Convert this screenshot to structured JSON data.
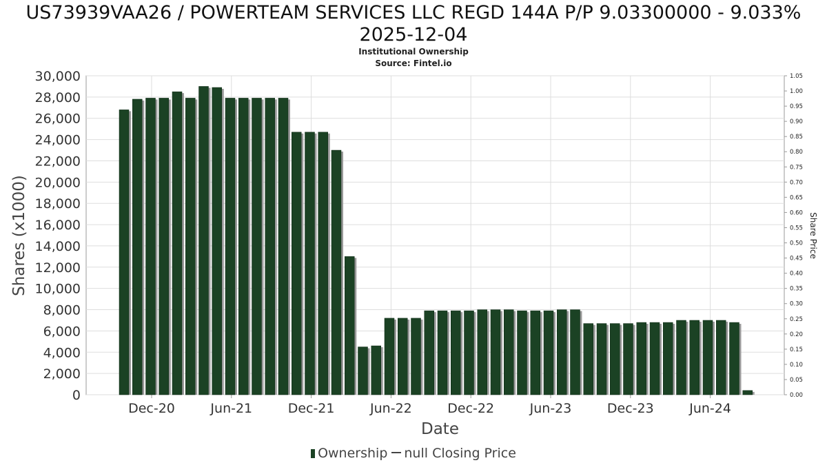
{
  "chart_data": {
    "type": "bar",
    "title": "US73939VAA26 / POWERTEAM SERVICES LLC REGD 144A P/P 9.03300000 - 9.033%",
    "title_line2": "2025-12-04",
    "subtitle": "Institutional Ownership",
    "source": "Source: Fintel.io",
    "xlabel": "Date",
    "ylabel": "Shares (x1000)",
    "y2label": "Share Price",
    "ylim": [
      0,
      30000
    ],
    "y2lim": [
      0,
      1.05
    ],
    "yticks": [
      "0",
      "2,000",
      "4,000",
      "6,000",
      "8,000",
      "10,000",
      "12,000",
      "14,000",
      "16,000",
      "18,000",
      "20,000",
      "22,000",
      "24,000",
      "26,000",
      "28,000",
      "30,000"
    ],
    "y2ticks": [
      "0.00",
      "0.05",
      "0.10",
      "0.15",
      "0.20",
      "0.25",
      "0.30",
      "0.35",
      "0.40",
      "0.45",
      "0.50",
      "0.55",
      "0.60",
      "0.65",
      "0.70",
      "0.75",
      "0.80",
      "0.85",
      "0.90",
      "0.95",
      "1.00",
      "1.05"
    ],
    "xticks": [
      "Dec-20",
      "Jun-21",
      "Dec-21",
      "Jun-22",
      "Dec-22",
      "Jun-23",
      "Dec-23",
      "Jun-24"
    ],
    "grid": true,
    "legend_position": "bottom",
    "series": [
      {
        "name": "Ownership",
        "color": "#1b4224",
        "values": [
          26800,
          27800,
          27900,
          27900,
          28500,
          27900,
          29000,
          28900,
          27900,
          27900,
          27900,
          27900,
          27900,
          24700,
          24700,
          24700,
          23000,
          13000,
          4500,
          4600,
          7200,
          7200,
          7200,
          7900,
          7900,
          7900,
          7900,
          8000,
          8000,
          8000,
          7900,
          7900,
          7900,
          8000,
          8000,
          6700,
          6700,
          6700,
          6700,
          6800,
          6800,
          6800,
          7000,
          7000,
          7000,
          7000,
          6800,
          400
        ]
      }
    ],
    "legend": [
      "Ownership",
      "null Closing Price"
    ]
  }
}
